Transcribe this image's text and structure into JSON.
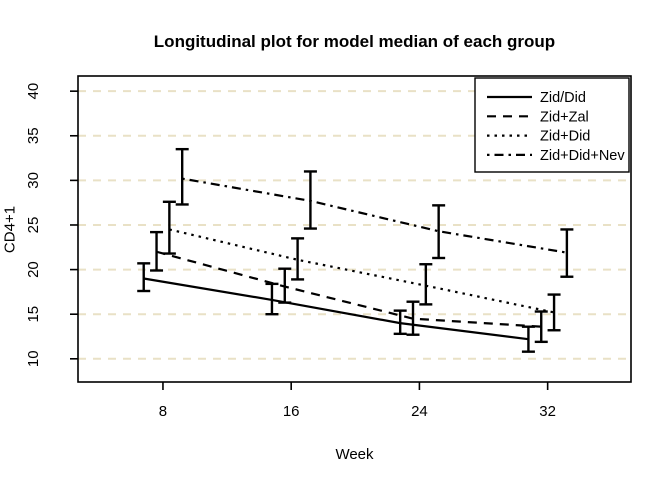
{
  "chart_data": {
    "type": "line",
    "title": "Longitudinal plot for model median of each group",
    "xlabel": "Week",
    "ylabel": "CD4+1",
    "xlim": [
      2.7,
      37.2
    ],
    "ylim": [
      7.4,
      41.7
    ],
    "xticks": [
      8,
      16,
      24,
      32
    ],
    "yticks": [
      10,
      15,
      20,
      25,
      30,
      35,
      40
    ],
    "grid": {
      "horizontal": true,
      "style": "dashed",
      "color": "#e9e1c6"
    },
    "line_color": "#000000",
    "error_bars": true,
    "legend": {
      "position": "top-right",
      "entries": [
        "Zid/Did",
        "Zid+Zal",
        "Zid+Did",
        "Zid+Did+Nev"
      ]
    },
    "series": [
      {
        "name": "Zid/Did",
        "linestyle": "solid",
        "x": [
          6.8,
          14.8,
          22.8,
          30.8
        ],
        "median": [
          19.0,
          16.6,
          14.0,
          12.2
        ],
        "lower": [
          17.6,
          15.0,
          12.8,
          10.8
        ],
        "upper": [
          20.7,
          18.4,
          15.4,
          13.6
        ]
      },
      {
        "name": "Zid+Zal",
        "linestyle": "dashed",
        "x": [
          7.6,
          15.6,
          23.6,
          31.6
        ],
        "median": [
          22.0,
          18.1,
          14.5,
          13.6
        ],
        "lower": [
          19.9,
          16.3,
          12.7,
          11.9
        ],
        "upper": [
          24.2,
          20.1,
          16.4,
          15.3
        ]
      },
      {
        "name": "Zid+Did",
        "linestyle": "dotted",
        "x": [
          8.4,
          16.4,
          24.4,
          32.4
        ],
        "median": [
          24.5,
          21.1,
          18.2,
          15.2
        ],
        "lower": [
          21.8,
          18.9,
          16.1,
          13.2
        ],
        "upper": [
          27.6,
          23.5,
          20.6,
          17.2
        ]
      },
      {
        "name": "Zid+Did+Nev",
        "linestyle": "dashdot",
        "x": [
          9.2,
          17.2,
          25.2,
          33.2
        ],
        "median": [
          30.2,
          27.7,
          24.3,
          21.9
        ],
        "lower": [
          27.3,
          24.6,
          21.3,
          19.2
        ],
        "upper": [
          33.5,
          31.0,
          27.2,
          24.5
        ]
      }
    ]
  }
}
